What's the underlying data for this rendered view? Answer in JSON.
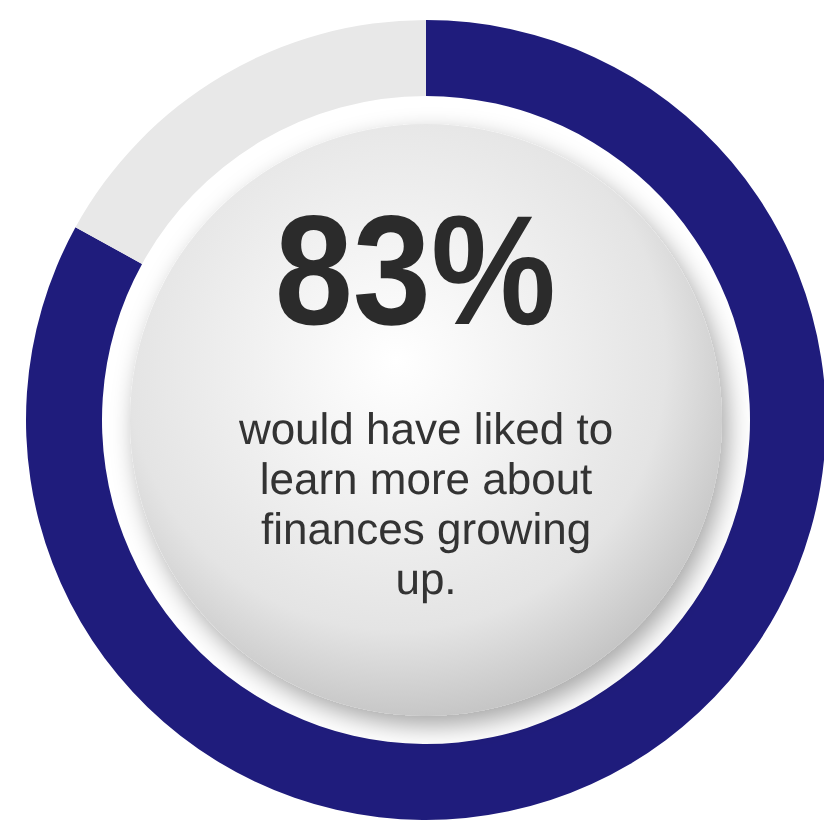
{
  "chart_data": {
    "type": "donut",
    "title": "83%",
    "subtitle": "would have liked to learn more about finances growing up.",
    "categories": [
      null,
      null
    ],
    "values": [
      83,
      17
    ],
    "colors": [
      "#1f1c7c",
      "#e8e8e8"
    ]
  }
}
